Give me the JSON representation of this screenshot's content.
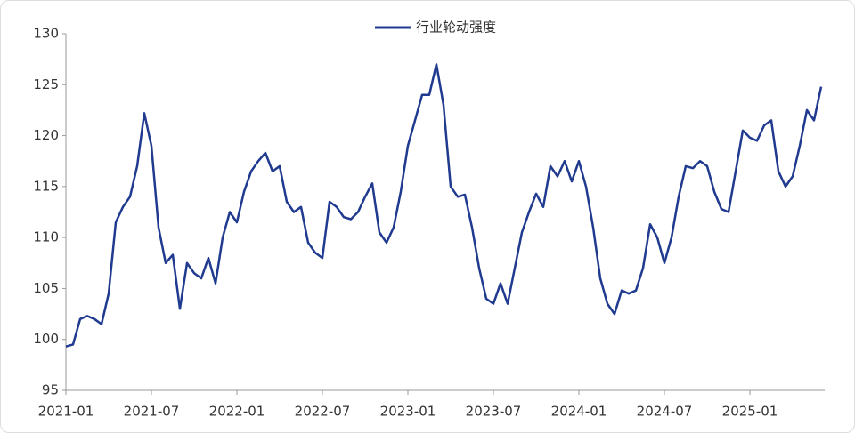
{
  "chart_data": {
    "type": "line",
    "categories": [
      "2021-01",
      null,
      null,
      null,
      null,
      null,
      null,
      null,
      null,
      null,
      null,
      null,
      "2021-07",
      null,
      null,
      null,
      null,
      null,
      null,
      null,
      null,
      null,
      null,
      null,
      "2022-01",
      null,
      null,
      null,
      null,
      null,
      null,
      null,
      null,
      null,
      null,
      null,
      "2022-07",
      null,
      null,
      null,
      null,
      null,
      null,
      null,
      null,
      null,
      null,
      null,
      "2023-01",
      null,
      null,
      null,
      null,
      null,
      null,
      null,
      null,
      null,
      null,
      null,
      "2023-07",
      null,
      null,
      null,
      null,
      null,
      null,
      null,
      null,
      null,
      null,
      null,
      "2024-01",
      null,
      null,
      null,
      null,
      null,
      null,
      null,
      null,
      null,
      null,
      null,
      "2024-07",
      null,
      null,
      null,
      null,
      null,
      null,
      null,
      null,
      null,
      null,
      null,
      "2025-01",
      null,
      null,
      null,
      null,
      null,
      null,
      null,
      null,
      null,
      null
    ],
    "series": [
      {
        "name": "行业轮动强度",
        "color": "#1f3a8f",
        "values": [
          99.3,
          99.5,
          102.0,
          102.3,
          102.0,
          101.5,
          104.5,
          111.5,
          113,
          114,
          117,
          122.2,
          119,
          111,
          107.5,
          108.3,
          103,
          107.5,
          106.5,
          106,
          108,
          105.5,
          110,
          112.5,
          111.5,
          114.5,
          116.5,
          117.5,
          118.3,
          116.5,
          117,
          113.5,
          112.5,
          113,
          109.5,
          108.5,
          108,
          113.5,
          113,
          112,
          111.8,
          112.5,
          114,
          115.3,
          110.5,
          109.5,
          111,
          114.5,
          119,
          121.5,
          124,
          124,
          127,
          123,
          115,
          114,
          114.2,
          111,
          107,
          104,
          103.5,
          105.5,
          103.5,
          107,
          110.5,
          112.5,
          114.3,
          113,
          117,
          116,
          117.5,
          115.5,
          117.5,
          115,
          111,
          106,
          103.5,
          102.5,
          104.8,
          104.5,
          104.8,
          107,
          111.3,
          110,
          107.5,
          110,
          114,
          117,
          116.8,
          117.5,
          117,
          114.5,
          112.8,
          112.5,
          116.5,
          120.5,
          119.8,
          119.5,
          121,
          121.5,
          116.5,
          115,
          116,
          119,
          122.5,
          121.5,
          124.8
        ]
      }
    ],
    "ylim": [
      95,
      130
    ],
    "yticks": [
      95,
      100,
      105,
      110,
      115,
      120,
      125,
      130
    ],
    "grid": false,
    "legend": "top"
  }
}
